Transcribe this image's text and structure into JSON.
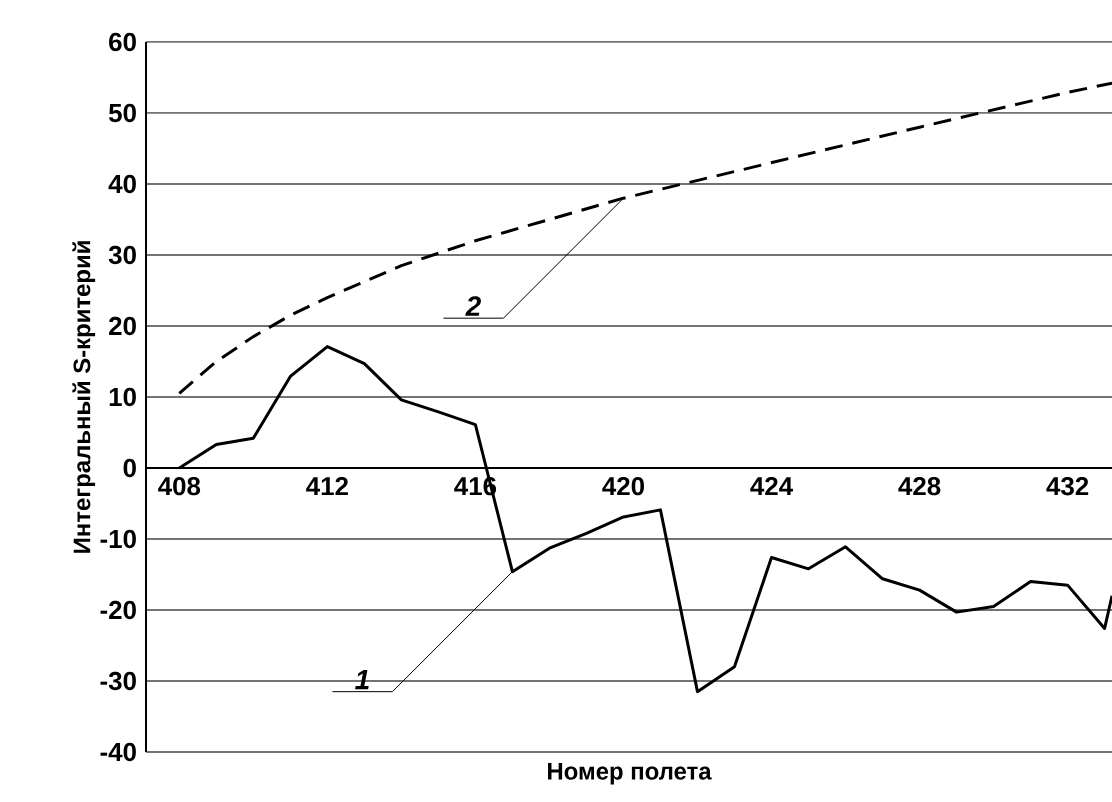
{
  "chart_data": {
    "type": "line",
    "xlabel": "Номер полета",
    "ylabel": "Интегральный S-критерий",
    "xlim": [
      407.1,
      433.2
    ],
    "ylim": [
      -40,
      60
    ],
    "xticks": [
      408,
      412,
      416,
      420,
      424,
      428,
      432
    ],
    "yticks": [
      -40,
      -30,
      -20,
      -10,
      0,
      10,
      20,
      30,
      40,
      50,
      60
    ],
    "grid": "y",
    "legend": false,
    "marker": "none",
    "series": [
      {
        "color": "#000000",
        "line_style": "solid",
        "x": [
          408,
          409,
          410,
          411,
          412,
          413,
          414,
          415,
          416,
          417,
          418,
          419,
          420,
          421,
          422,
          423,
          424,
          425,
          426,
          427,
          428,
          429,
          430,
          431,
          432,
          433,
          433.2
        ],
        "values": [
          0,
          3.3,
          4.2,
          12.9,
          17.1,
          14.7,
          9.6,
          7.9,
          6.1,
          -14.6,
          -11.3,
          -9.2,
          -6.9,
          -5.9,
          -31.5,
          -28.0,
          -12.6,
          -14.2,
          -11.1,
          -15.6,
          -17.2,
          -20.3,
          -19.5,
          -16.0,
          -16.5,
          -22.6,
          -18.0
        ]
      },
      {
        "color": "#000000",
        "line_style": "dashed",
        "x": [
          408,
          409,
          410,
          411,
          412,
          414,
          416,
          418,
          420,
          424,
          428,
          432,
          433.2
        ],
        "values": [
          10.5,
          15.0,
          18.5,
          21.5,
          24.0,
          28.5,
          32.0,
          35.0,
          38.0,
          43.0,
          48.0,
          52.9,
          54.2
        ]
      }
    ],
    "annotations": [
      {
        "text": "1",
        "x": 417,
        "y": -14.6
      },
      {
        "text": "2",
        "x": 420,
        "y": 38.0
      }
    ]
  }
}
